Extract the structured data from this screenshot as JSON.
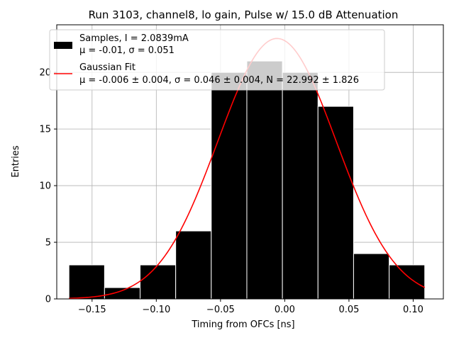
{
  "chart_data": {
    "type": "bar",
    "title": "Run 3103, channel8, lo gain, Pulse w/ 15.0 dB Attenuation",
    "xlabel": "Timing from OFCs [ns]",
    "ylabel": "Entries",
    "xlim": [
      -0.1775,
      0.1235
    ],
    "ylim": [
      0,
      24.2
    ],
    "x_ticks": [
      -0.15,
      -0.1,
      -0.05,
      0.0,
      0.05,
      0.1
    ],
    "x_tick_labels": [
      "−0.15",
      "−0.10",
      "−0.05",
      "0.00",
      "0.05",
      "0.10"
    ],
    "y_ticks": [
      0,
      5,
      10,
      15,
      20
    ],
    "y_tick_labels": [
      "0",
      "5",
      "10",
      "15",
      "20"
    ],
    "grid": true,
    "legend_position": "top-left",
    "histogram": {
      "bin_edges": [
        -0.168,
        -0.1403,
        -0.1126,
        -0.0849,
        -0.0572,
        -0.0295,
        -0.0018,
        0.0259,
        0.0536,
        0.0813,
        0.109
      ],
      "counts": [
        3,
        1,
        3,
        6,
        20,
        21,
        20,
        17,
        4,
        3
      ],
      "color": "#000000",
      "edge_color": "#ffffff"
    },
    "fit": {
      "mu": -0.006,
      "sigma": 0.046,
      "N": 22.992,
      "x_range": [
        -0.168,
        0.109
      ],
      "color": "#ff0000"
    },
    "legend": [
      {
        "kind": "patch",
        "color": "#000000",
        "line1": "Samples, I = 2.0839mA",
        "line2": "μ = -0.01, σ = 0.051"
      },
      {
        "kind": "line",
        "color": "#ff0000",
        "line1": "Gaussian Fit",
        "line2": "μ = -0.006 ± 0.004, σ = 0.046 ± 0.004, N = 22.992 ± 1.826"
      }
    ]
  }
}
